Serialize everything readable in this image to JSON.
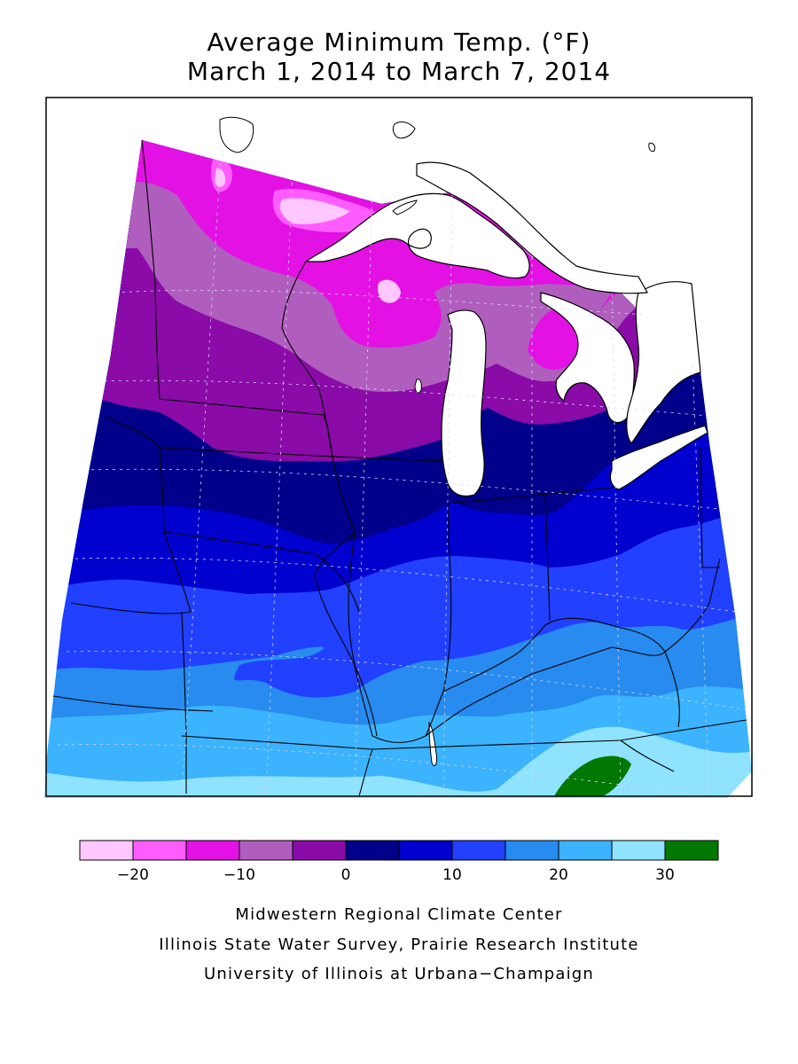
{
  "title": {
    "line1": "Average Minimum Temp. (°F)",
    "line2": "March 1, 2014 to March 7, 2014"
  },
  "legend": {
    "bins": [
      {
        "lo": -25,
        "hi": -20,
        "color": "#ffc6ff"
      },
      {
        "lo": -20,
        "hi": -15,
        "color": "#ff5cff"
      },
      {
        "lo": -15,
        "hi": -10,
        "color": "#e311e3"
      },
      {
        "lo": -10,
        "hi": -5,
        "color": "#b05ebe"
      },
      {
        "lo": -5,
        "hi": 0,
        "color": "#8a0ba8"
      },
      {
        "lo": 0,
        "hi": 5,
        "color": "#00008a"
      },
      {
        "lo": 5,
        "hi": 10,
        "color": "#0000cf"
      },
      {
        "lo": 10,
        "hi": 15,
        "color": "#2140ff"
      },
      {
        "lo": 15,
        "hi": 20,
        "color": "#278bef"
      },
      {
        "lo": 20,
        "hi": 25,
        "color": "#3cb3ff"
      },
      {
        "lo": 25,
        "hi": 30,
        "color": "#90e3ff"
      },
      {
        "lo": 30,
        "hi": 35,
        "color": "#017801"
      }
    ],
    "tick_labels": [
      "−20",
      "−10",
      "0",
      "10",
      "20",
      "30"
    ],
    "tick_values": [
      -20,
      -10,
      0,
      10,
      20,
      30
    ]
  },
  "map": {
    "region": "Midwest",
    "water_color": "#ffffff",
    "boundary_color": "#000000"
  },
  "credits": {
    "line1": "Midwestern Regional Climate Center",
    "line2": "Illinois State Water Survey, Prairie Research Institute",
    "line3": "University of Illinois at Urbana−Champaign"
  }
}
